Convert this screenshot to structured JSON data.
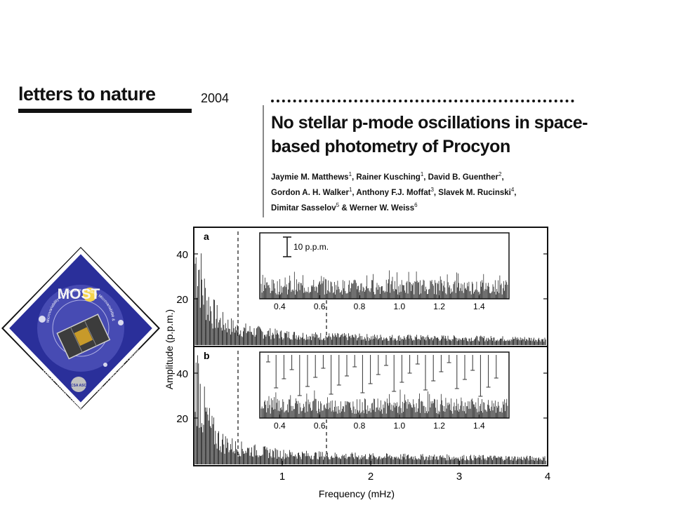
{
  "header": {
    "journal": "letters to nature",
    "year": "2004"
  },
  "article": {
    "title": "No stellar p-mode oscillations in space-based photometry of Procyon",
    "authors": [
      {
        "name": "Jaymie M. Matthews",
        "aff": "1"
      },
      {
        "name": "Rainer Kusching",
        "aff": "1"
      },
      {
        "name": "David B. Guenther",
        "aff": "2"
      },
      {
        "name": "Gordon A. H. Walker",
        "aff": "1"
      },
      {
        "name": "Anthony F.J. Moffat",
        "aff": "3"
      },
      {
        "name": "Slavek M. Rucinski",
        "aff": "4"
      },
      {
        "name": "Dimitar Sasselov",
        "aff": "5"
      },
      {
        "name": "Werner W. Weiss",
        "aff": "6"
      }
    ]
  },
  "logo": {
    "name": "MOST",
    "ring_text": "Microvariability & Oscillations of Stars · Microvariabilité & Oscillations Stellaires",
    "left_text": "AMSAT · UTIAS · Dynacon",
    "right_text": "UBC · CRESTech · Ontario",
    "agency": "CSA ASC",
    "colors": {
      "field": "#2a2f9a",
      "border": "#ffffff",
      "frame": "#111111"
    }
  },
  "chart_data": {
    "type": "line",
    "xlabel": "Frequency (mHz)",
    "ylabel": "Amplitude (p.p.m.)",
    "xlim": [
      0,
      4.0
    ],
    "xticks": [
      "1",
      "2",
      "3",
      "4"
    ],
    "panels": [
      {
        "label": "a",
        "yticks": [
          "40",
          "20"
        ],
        "dashed_lines_mHz": [
          0.5,
          1.5
        ],
        "spectrum": {
          "x": [
            0.05,
            0.1,
            0.2,
            0.3,
            0.5,
            0.8,
            1.0,
            1.5,
            2.0,
            3.0,
            4.0
          ],
          "y": [
            45,
            30,
            18,
            12,
            8,
            6,
            5,
            4,
            3.5,
            3,
            2.5
          ]
        },
        "inset": {
          "xlim": [
            0.3,
            1.55
          ],
          "xticks": [
            "0.4",
            "0.6",
            "0.8",
            "1.0",
            "1.2",
            "1.4"
          ],
          "scale_bar": "10 p.p.m.",
          "comb": false
        }
      },
      {
        "label": "b",
        "yticks": [
          "40",
          "20"
        ],
        "dashed_lines_mHz": [
          0.5,
          1.5
        ],
        "spectrum": {
          "x": [
            0.05,
            0.1,
            0.2,
            0.3,
            0.5,
            0.8,
            1.0,
            1.5,
            2.0,
            3.0,
            4.0
          ],
          "y": [
            45,
            30,
            18,
            12,
            8,
            6,
            5,
            4,
            3.5,
            3,
            2.5
          ]
        },
        "inset": {
          "xlim": [
            0.3,
            1.55
          ],
          "xticks": [
            "0.4",
            "0.6",
            "0.8",
            "1.0",
            "1.2",
            "1.4"
          ],
          "comb": true
        }
      }
    ]
  }
}
